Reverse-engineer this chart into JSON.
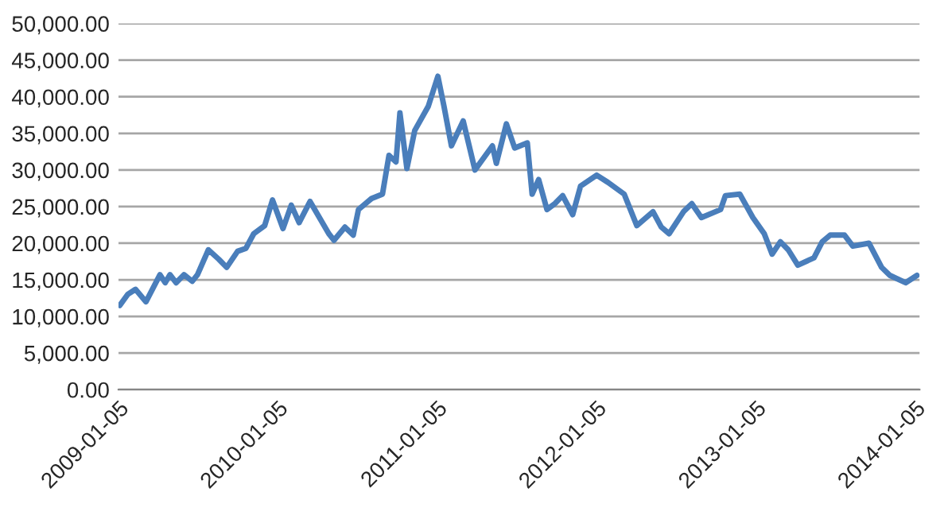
{
  "chart_data": {
    "type": "line",
    "x": [
      "2009-01-08",
      "2009-01-26",
      "2009-02-13",
      "2009-03-09",
      "2009-04-10",
      "2009-04-22",
      "2009-05-03",
      "2009-05-17",
      "2009-06-04",
      "2009-06-23",
      "2009-07-05",
      "2009-07-30",
      "2009-08-23",
      "2009-09-10",
      "2009-10-05",
      "2009-10-24",
      "2009-11-11",
      "2009-12-06",
      "2009-12-24",
      "2010-01-17",
      "2010-02-05",
      "2010-02-23",
      "2010-03-20",
      "2010-05-02",
      "2010-05-14",
      "2010-06-08",
      "2010-06-27",
      "2010-07-09",
      "2010-08-08",
      "2010-09-02",
      "2010-09-17",
      "2010-10-03",
      "2010-10-12",
      "2010-10-28",
      "2010-11-15",
      "2010-12-16",
      "2011-01-07",
      "2011-01-21",
      "2011-02-07",
      "2011-03-06",
      "2011-04-02",
      "2011-05-12",
      "2011-05-21",
      "2011-06-13",
      "2011-07-02",
      "2011-07-31",
      "2011-08-11",
      "2011-08-26",
      "2011-09-14",
      "2011-10-02",
      "2011-10-20",
      "2011-11-12",
      "2011-11-30",
      "2012-01-06",
      "2012-02-01",
      "2012-03-09",
      "2012-04-07",
      "2012-05-14",
      "2012-06-02",
      "2012-06-20",
      "2012-07-23",
      "2012-08-11",
      "2012-09-02",
      "2012-10-16",
      "2012-10-27",
      "2012-11-29",
      "2012-12-29",
      "2013-01-24",
      "2013-02-11",
      "2013-03-02",
      "2013-03-20",
      "2013-04-11",
      "2013-05-18",
      "2013-06-06",
      "2013-06-24",
      "2013-07-27",
      "2013-08-15",
      "2013-09-21",
      "2013-10-20",
      "2013-11-08",
      "2013-12-14",
      "2014-01-09"
    ],
    "series": [
      {
        "color": "#4a7ebb",
        "values": [
          11500,
          13000,
          13700,
          12000,
          15700,
          14600,
          15700,
          14600,
          15700,
          14800,
          15700,
          19100,
          17800,
          16700,
          18900,
          19300,
          21300,
          22400,
          25900,
          22000,
          25200,
          22800,
          25700,
          21300,
          20400,
          22200,
          21100,
          24600,
          26100,
          26700,
          32000,
          31100,
          37800,
          30200,
          35400,
          38700,
          42800,
          38700,
          33300,
          36700,
          30000,
          33300,
          30900,
          36300,
          33000,
          33700,
          26700,
          28700,
          24600,
          25400,
          26500,
          23900,
          27800,
          29300,
          28300,
          26700,
          22400,
          24300,
          22200,
          21300,
          24300,
          25400,
          23500,
          24600,
          26500,
          26700,
          23500,
          21300,
          18500,
          20200,
          19100,
          17000,
          18000,
          20200,
          21100,
          21100,
          19600,
          20000,
          16700,
          15600,
          14600,
          15600
        ]
      }
    ],
    "xlim": [
      "2009-01-05",
      "2014-01-15"
    ],
    "xticks": [
      "2009-01-05",
      "2010-01-05",
      "2011-01-05",
      "2012-01-05",
      "2013-01-05",
      "2014-01-05"
    ],
    "ylim": [
      0,
      50000
    ],
    "yticks": [
      {
        "value": 0,
        "label": "0.00"
      },
      {
        "value": 5000,
        "label": "5,000.00"
      },
      {
        "value": 10000,
        "label": "10,000.00"
      },
      {
        "value": 15000,
        "label": "15,000.00"
      },
      {
        "value": 20000,
        "label": "20,000.00"
      },
      {
        "value": 25000,
        "label": "25,000.00"
      },
      {
        "value": 30000,
        "label": "30,000.00"
      },
      {
        "value": 35000,
        "label": "35,000.00"
      },
      {
        "value": 40000,
        "label": "40,000.00"
      },
      {
        "value": 45000,
        "label": "45,000.00"
      },
      {
        "value": 50000,
        "label": "50,000.00"
      }
    ],
    "grid": "y",
    "marker": "none",
    "line_style": "solid"
  }
}
